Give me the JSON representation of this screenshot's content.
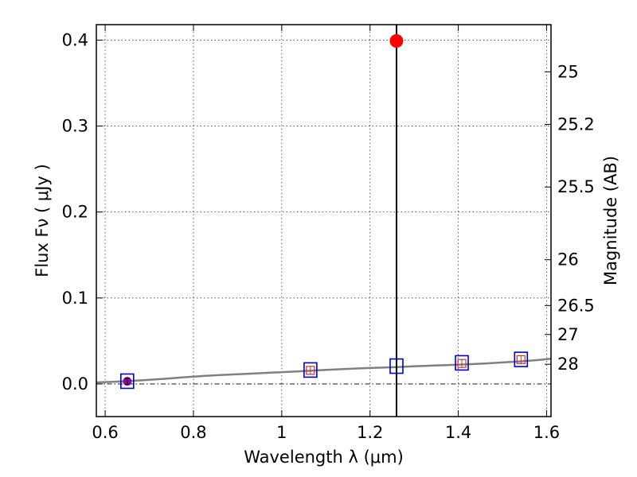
{
  "chart_data": {
    "type": "scatter",
    "title": "",
    "xlabel": "Wavelength  λ (μm)",
    "ylabel": "Flux  Fν ( μJy )",
    "ylabel_right": "Magnitude (AB)",
    "xlim": [
      0.58,
      1.61
    ],
    "ylim": [
      -0.038,
      0.418
    ],
    "grid": true,
    "xticks": [
      0.6,
      0.8,
      1.0,
      1.2,
      1.4,
      1.6
    ],
    "xtick_labels": [
      "0.6",
      "0.8",
      "1",
      "1.2",
      "1.4",
      "1.6"
    ],
    "yticks": [
      0.0,
      0.1,
      0.2,
      0.3,
      0.4
    ],
    "ytick_labels": [
      "0.0",
      "0.1",
      "0.2",
      "0.3",
      "0.4"
    ],
    "right_ticks": [
      {
        "label": "25",
        "flux": 0.3631
      },
      {
        "label": "25.2",
        "flux": 0.302
      },
      {
        "label": "25.5",
        "flux": 0.2291
      },
      {
        "label": "26",
        "flux": 0.1445
      },
      {
        "label": "26.5",
        "flux": 0.0912
      },
      {
        "label": "27",
        "flux": 0.0575
      },
      {
        "label": "28",
        "flux": 0.0229
      }
    ],
    "vertical_line_x": 1.26,
    "zero_line_y": 0.0,
    "model_spectrum": {
      "color": "#808080",
      "x": [
        0.58,
        0.62,
        0.66,
        0.7,
        0.74,
        0.78,
        0.82,
        0.86,
        0.9,
        0.94,
        0.98,
        1.02,
        1.06,
        1.1,
        1.14,
        1.18,
        1.22,
        1.26,
        1.3,
        1.34,
        1.38,
        1.42,
        1.46,
        1.5,
        1.54,
        1.58,
        1.61
      ],
      "y": [
        0.0018,
        0.0025,
        0.0035,
        0.0048,
        0.0062,
        0.0078,
        0.0092,
        0.0103,
        0.0113,
        0.0122,
        0.0132,
        0.0142,
        0.0152,
        0.0163,
        0.0173,
        0.0182,
        0.0189,
        0.0196,
        0.0205,
        0.0213,
        0.022,
        0.0228,
        0.0237,
        0.025,
        0.0262,
        0.0278,
        0.0292
      ]
    },
    "model_points": {
      "color": "#0000cc",
      "x": [
        0.65,
        1.065,
        1.26,
        1.408,
        1.542
      ],
      "y": [
        0.0032,
        0.0162,
        0.0207,
        0.0245,
        0.0285
      ]
    },
    "observed_points": {
      "color": "#cc3333",
      "x": [
        1.065,
        1.408,
        1.542
      ],
      "y": [
        0.0158,
        0.0238,
        0.0282
      ],
      "yerr": [
        0.0045,
        0.0045,
        0.0045
      ]
    },
    "detection_point": {
      "color": "#9900aa",
      "x": 0.65,
      "y": 0.003,
      "yerr": 0.0035
    },
    "highlight_point": {
      "color": "#ff0000",
      "x": 1.26,
      "y": 0.399
    }
  }
}
